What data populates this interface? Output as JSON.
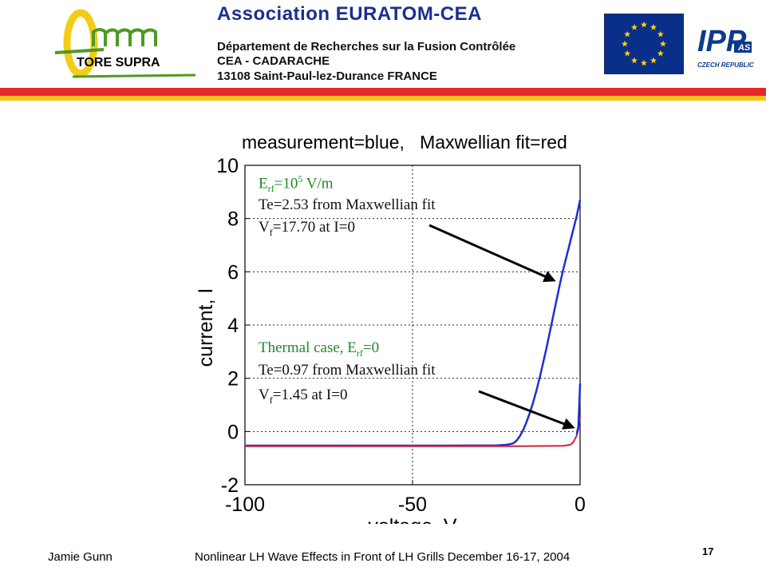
{
  "header": {
    "title": "Association  EURATOM-CEA",
    "department": "Département de Recherches sur la Fusion Contrôlée",
    "site": "CEA - CADARACHE",
    "address": "13108 Saint-Paul-lez-Durance   FRANCE",
    "tore_supra": "TORE SUPRA",
    "ipp_logo_text": "IPP",
    "ipp_logo_sub": "AS",
    "ipp_logo_country": "CZECH REPUBLIC",
    "stripe_colors": [
      "#e8262b",
      "#f7c21a"
    ]
  },
  "annotations": {
    "hot_field_a": "E",
    "hot_field_sub": "rf",
    "hot_field_b": "=10",
    "hot_field_sup": "5",
    "hot_field_c": " V/m",
    "hot_te": "Te=2.53 from Maxwellian fit",
    "hot_vf_a": "V",
    "hot_vf_sub": "f",
    "hot_vf_b": "=17.70 at I=0",
    "thermal_a": "Thermal case, E",
    "thermal_sub": "rf",
    "thermal_b": "=0",
    "thermal_te": "Te=0.97 from Maxwellian fit",
    "thermal_vf_a": "V",
    "thermal_vf_sub": "f",
    "thermal_vf_b": "=1.45 at I=0"
  },
  "chart_data": {
    "type": "line",
    "title": "measurement=blue,   Maxwellian fit=red",
    "xlabel": "voltage, V",
    "ylabel": "current, I",
    "xlim": [
      -100,
      0
    ],
    "ylim": [
      -2,
      10
    ],
    "xticks": [
      -100,
      -50,
      0
    ],
    "yticks": [
      -2,
      0,
      2,
      4,
      6,
      8,
      10
    ],
    "grid": "dotted at x=-50 and y=0,2,4,6,8",
    "series": [
      {
        "color": "#d21f3c",
        "width": 2,
        "x": [
          -100,
          -80,
          -60,
          -40,
          -25,
          -22,
          -20,
          -19,
          -18,
          -17,
          -16,
          -15,
          -14
        ],
        "y": [
          -0.53,
          -0.53,
          -0.53,
          -0.53,
          -0.52,
          -0.5,
          -0.45,
          -0.35,
          -0.18,
          0.05,
          0.35,
          0.7,
          1.1
        ]
      },
      {
        "color": "#1b2fd6",
        "width": 2.5,
        "x": [
          -100,
          -80,
          -60,
          -40,
          -25,
          -22,
          -20,
          -19,
          -18,
          -17,
          -16,
          -15,
          -14,
          -13,
          -12,
          -11,
          -10,
          -9,
          -8,
          -7,
          -6,
          -5,
          -4,
          -3,
          -2,
          -1,
          0
        ],
        "y": [
          -0.53,
          -0.53,
          -0.53,
          -0.53,
          -0.52,
          -0.5,
          -0.45,
          -0.35,
          -0.18,
          0.05,
          0.35,
          0.7,
          1.1,
          1.55,
          2.05,
          2.6,
          3.15,
          3.75,
          4.35,
          4.95,
          5.55,
          6.1,
          6.6,
          7.1,
          7.6,
          8.1,
          8.7
        ]
      },
      {
        "color": "#d21f3c",
        "width": 2,
        "x": [
          -100,
          -60,
          -20,
          -5,
          -3,
          -2,
          -1,
          -0.5,
          0
        ],
        "y": [
          -0.55,
          -0.55,
          -0.55,
          -0.54,
          -0.5,
          -0.4,
          -0.15,
          0.1,
          0.6
        ]
      },
      {
        "color": "#1b2fd6",
        "width": 2.5,
        "x": [
          -1,
          -0.5,
          0
        ],
        "y": [
          -0.1,
          0.2,
          1.8
        ]
      }
    ]
  }
}
